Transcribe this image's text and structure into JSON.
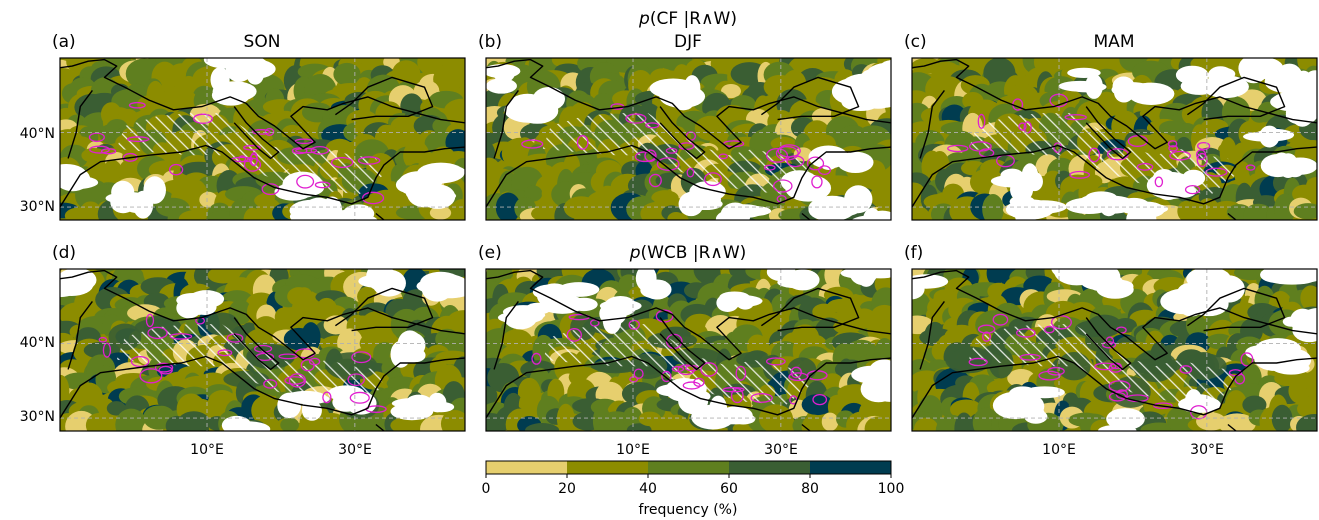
{
  "figure": {
    "row_titles": [
      {
        "prefix": "p",
        "text": "(CF |R∧W)"
      },
      {
        "prefix": "p",
        "text": "(WCB |R∧W)"
      }
    ],
    "panels": [
      {
        "letter": "(a)",
        "season": "SON"
      },
      {
        "letter": "(b)",
        "season": "DJF"
      },
      {
        "letter": "(c)",
        "season": "MAM"
      },
      {
        "letter": "(d)",
        "season": ""
      },
      {
        "letter": "(e)",
        "season": ""
      },
      {
        "letter": "(f)",
        "season": ""
      }
    ],
    "lat_ticks": [
      "40°N",
      "30°N"
    ],
    "lon_ticks": [
      "10°E",
      "30°E"
    ],
    "colorbar": {
      "label": "frequency (%)",
      "ticks": [
        "0",
        "20",
        "40",
        "60",
        "80",
        "100"
      ],
      "colors": [
        "#e6cf6e",
        "#8c8c00",
        "#5f7f1f",
        "#3a5e33",
        "#003c50"
      ]
    },
    "colors": {
      "land_outline": "#000000",
      "contour": "#e020d0",
      "hatch": "#ffffff",
      "grid": "#b0b0b0"
    }
  }
}
